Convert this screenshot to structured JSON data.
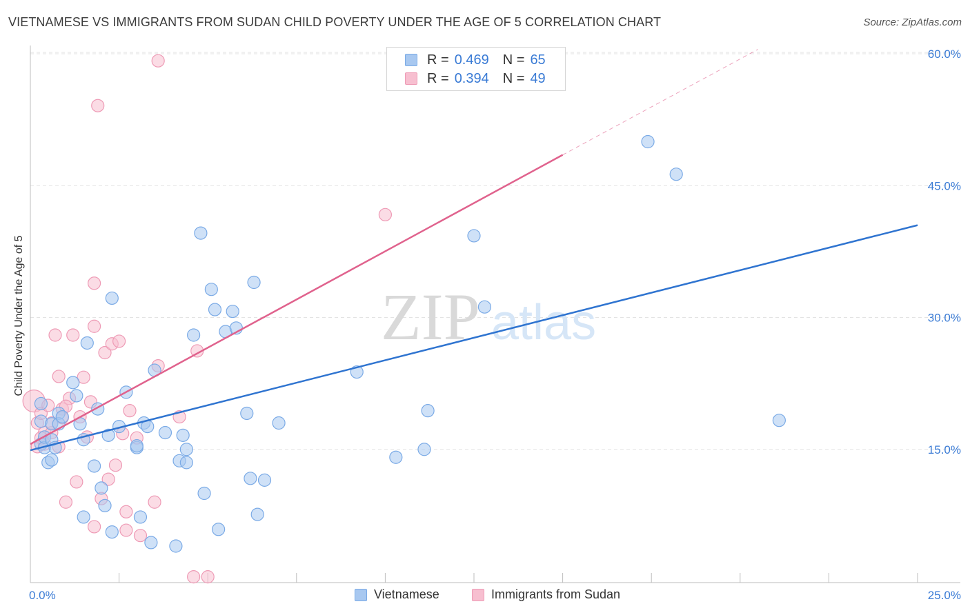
{
  "header": {
    "title": "VIETNAMESE VS IMMIGRANTS FROM SUDAN CHILD POVERTY UNDER THE AGE OF 5 CORRELATION CHART",
    "source": "Source: ZipAtlas.com"
  },
  "watermark": {
    "zip": "ZIP",
    "atlas": "atlas"
  },
  "legend_top": {
    "rows": [
      {
        "r_label": "R =",
        "r_value": "0.469",
        "n_label": "N =",
        "n_value": "65"
      },
      {
        "r_label": "R =",
        "r_value": "0.394",
        "n_label": "N =",
        "n_value": "49"
      }
    ]
  },
  "legend_bottom": {
    "series1": "Vietnamese",
    "series2": "Immigrants from Sudan"
  },
  "colors": {
    "blue_fill": "#a8c8f0",
    "blue_stroke": "#7aaae6",
    "blue_line": "#2f74d0",
    "pink_fill": "#f7bfd0",
    "pink_stroke": "#ee9ab5",
    "pink_line": "#e0628d",
    "tick_text": "#3a7bd5",
    "grid": "#e3e3e3"
  },
  "chart_data": {
    "type": "scatter",
    "title": "VIETNAMESE VS IMMIGRANTS FROM SUDAN CHILD POVERTY UNDER THE AGE OF 5 CORRELATION CHART",
    "xlabel": "",
    "ylabel": "Child Poverty Under the Age of 5",
    "xlim": [
      0,
      25
    ],
    "ylim": [
      0,
      60
    ],
    "x_tick_labels": [
      "0.0%",
      "25.0%"
    ],
    "y_ticks": [
      15,
      30,
      45,
      60
    ],
    "y_tick_labels": [
      "15.0%",
      "30.0%",
      "45.0%",
      "60.0%"
    ],
    "grid": true,
    "legend_position": "top-center",
    "series": [
      {
        "name": "Vietnamese",
        "r": 0.469,
        "n": 65,
        "trend": {
          "x": [
            0,
            25
          ],
          "y": [
            14.9,
            40.5
          ]
        },
        "points": [
          [
            0.3,
            15.6
          ],
          [
            0.3,
            18.2
          ],
          [
            0.3,
            20.2
          ],
          [
            0.4,
            15.2
          ],
          [
            0.4,
            16.4
          ],
          [
            0.6,
            16.1
          ],
          [
            0.5,
            13.5
          ],
          [
            0.6,
            17.9
          ],
          [
            0.7,
            15.2
          ],
          [
            0.8,
            19.1
          ],
          [
            0.8,
            17.9
          ],
          [
            0.9,
            18.7
          ],
          [
            1.2,
            22.6
          ],
          [
            1.3,
            21.1
          ],
          [
            1.4,
            17.9
          ],
          [
            1.5,
            16.1
          ],
          [
            1.6,
            27.1
          ],
          [
            1.8,
            13.1
          ],
          [
            1.9,
            19.6
          ],
          [
            2.0,
            10.6
          ],
          [
            2.1,
            8.6
          ],
          [
            2.2,
            16.6
          ],
          [
            2.3,
            5.6
          ],
          [
            2.3,
            32.2
          ],
          [
            2.5,
            17.6
          ],
          [
            2.7,
            21.5
          ],
          [
            3.0,
            15.2
          ],
          [
            3.1,
            7.3
          ],
          [
            3.2,
            18.0
          ],
          [
            3.3,
            17.6
          ],
          [
            3.4,
            4.4
          ],
          [
            3.5,
            24.0
          ],
          [
            3.8,
            16.9
          ],
          [
            4.1,
            4.0
          ],
          [
            4.2,
            13.7
          ],
          [
            4.3,
            16.6
          ],
          [
            4.4,
            15.0
          ],
          [
            4.4,
            13.5
          ],
          [
            4.6,
            28.0
          ],
          [
            4.8,
            39.6
          ],
          [
            4.9,
            10.0
          ],
          [
            5.1,
            33.2
          ],
          [
            5.2,
            30.9
          ],
          [
            5.3,
            5.9
          ],
          [
            5.5,
            28.4
          ],
          [
            5.7,
            30.7
          ],
          [
            5.8,
            28.8
          ],
          [
            6.1,
            19.1
          ],
          [
            6.2,
            11.7
          ],
          [
            6.3,
            34.0
          ],
          [
            6.4,
            7.6
          ],
          [
            6.6,
            11.5
          ],
          [
            7.0,
            18.0
          ],
          [
            9.2,
            23.8
          ],
          [
            10.3,
            14.1
          ],
          [
            11.1,
            15.0
          ],
          [
            11.2,
            19.4
          ],
          [
            12.5,
            39.3
          ],
          [
            12.8,
            31.2
          ],
          [
            17.4,
            50.0
          ],
          [
            18.2,
            46.3
          ],
          [
            21.1,
            18.3
          ],
          [
            0.6,
            13.8
          ],
          [
            1.5,
            7.3
          ],
          [
            3.0,
            15.4
          ]
        ]
      },
      {
        "name": "Immigrants from Sudan",
        "r": 0.394,
        "n": 49,
        "trend": {
          "x": [
            0,
            15
          ],
          "y": [
            15.6,
            48.5
          ]
        },
        "trend_extended": {
          "x": [
            15,
            20.5
          ],
          "y": [
            48.5,
            60.5
          ]
        },
        "points": [
          [
            0.1,
            20.5
          ],
          [
            0.2,
            18.0
          ],
          [
            0.2,
            15.3
          ],
          [
            0.3,
            19.1
          ],
          [
            0.4,
            16.9
          ],
          [
            0.4,
            15.6
          ],
          [
            0.5,
            20.0
          ],
          [
            0.6,
            16.9
          ],
          [
            0.6,
            18.0
          ],
          [
            0.7,
            28.0
          ],
          [
            0.8,
            23.3
          ],
          [
            0.8,
            15.3
          ],
          [
            0.9,
            19.6
          ],
          [
            0.9,
            18.6
          ],
          [
            1.0,
            9.0
          ],
          [
            1.1,
            20.8
          ],
          [
            1.2,
            28.0
          ],
          [
            1.3,
            11.3
          ],
          [
            1.4,
            18.7
          ],
          [
            1.5,
            23.2
          ],
          [
            1.6,
            16.4
          ],
          [
            1.7,
            20.4
          ],
          [
            1.8,
            6.2
          ],
          [
            1.8,
            29.0
          ],
          [
            1.8,
            33.9
          ],
          [
            1.9,
            54.1
          ],
          [
            2.0,
            9.4
          ],
          [
            2.1,
            26.0
          ],
          [
            2.2,
            11.6
          ],
          [
            2.3,
            27.0
          ],
          [
            2.4,
            13.2
          ],
          [
            2.5,
            27.3
          ],
          [
            2.6,
            16.8
          ],
          [
            2.7,
            7.9
          ],
          [
            2.7,
            5.8
          ],
          [
            2.8,
            19.4
          ],
          [
            3.0,
            16.3
          ],
          [
            3.1,
            5.2
          ],
          [
            3.5,
            9.0
          ],
          [
            3.6,
            24.5
          ],
          [
            3.6,
            59.2
          ],
          [
            4.2,
            18.7
          ],
          [
            4.6,
            0.5
          ],
          [
            4.7,
            26.2
          ],
          [
            5.0,
            0.5
          ],
          [
            10.0,
            41.7
          ],
          [
            11.8,
            56.6
          ],
          [
            0.3,
            16.3
          ],
          [
            1.0,
            19.9
          ]
        ]
      }
    ]
  }
}
